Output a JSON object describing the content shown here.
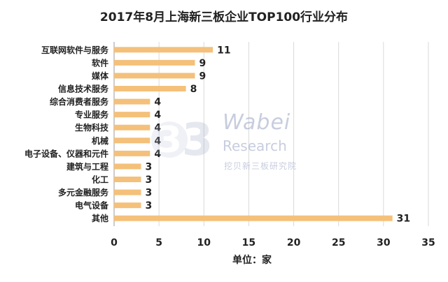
{
  "chart_data": {
    "type": "bar",
    "orientation": "horizontal",
    "title": "2017年8月上海新三板企业TOP100行业分布",
    "xlabel": "单位：家",
    "ylabel": "",
    "xlim": [
      0,
      35
    ],
    "xticks": [
      0,
      5,
      10,
      15,
      20,
      25,
      30,
      35
    ],
    "grid": true,
    "legend": "none",
    "bar_color": "#F4C07A",
    "categories": [
      "互联网软件与服务",
      "软件",
      "媒体",
      "信息技术服务",
      "综合消费者服务",
      "专业服务",
      "生物科技",
      "机械",
      "电子设备、仪器和元件",
      "建筑与工程",
      "化工",
      "多元金融服务",
      "电气设备",
      "其他"
    ],
    "values": [
      11,
      9,
      9,
      8,
      4,
      4,
      4,
      4,
      4,
      3,
      3,
      3,
      3,
      31
    ]
  },
  "watermark": {
    "logo_glyph": "3",
    "brand": "Wabei",
    "sub": "Research",
    "cn": "挖贝新三板研究院"
  }
}
